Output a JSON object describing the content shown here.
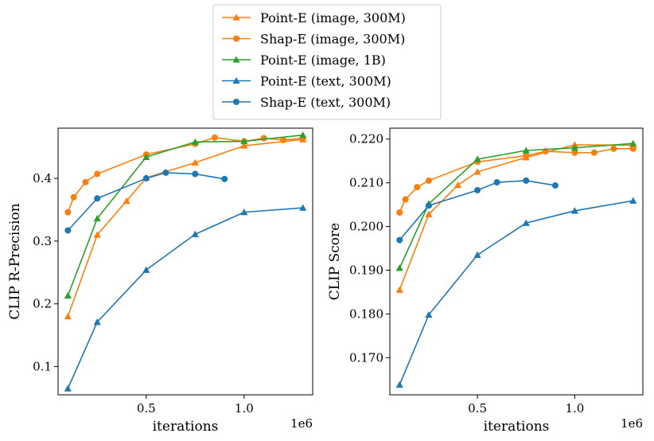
{
  "chart_data": [
    {
      "type": "line",
      "xlabel": "iterations",
      "ylabel": "CLIP R-Precision",
      "x_offset_label": "1e6",
      "xlim": [
        0.05,
        1.35
      ],
      "ylim": [
        0.055,
        0.48
      ],
      "xticks": [
        0.5,
        1.0
      ],
      "xtick_labels": [
        "0.5",
        "1.0"
      ],
      "yticks": [
        0.1,
        0.2,
        0.3,
        0.4
      ],
      "ytick_labels": [
        "0.1",
        "0.2",
        "0.3",
        "0.4"
      ],
      "series": [
        {
          "name": "Point-E (image, 300M)",
          "color": "#ff7f0e",
          "marker": "triangle",
          "x": [
            0.1,
            0.25,
            0.4,
            0.5,
            0.75,
            1.0,
            1.3
          ],
          "y": [
            0.18,
            0.31,
            0.364,
            0.401,
            0.425,
            0.452,
            0.462
          ]
        },
        {
          "name": "Shap-E (image, 300M)",
          "color": "#ff7f0e",
          "marker": "circle",
          "x": [
            0.1,
            0.13,
            0.19,
            0.25,
            0.5,
            0.75,
            0.85,
            1.0,
            1.1,
            1.2,
            1.3
          ],
          "y": [
            0.346,
            0.37,
            0.394,
            0.407,
            0.438,
            0.455,
            0.465,
            0.459,
            0.464,
            0.461,
            0.464
          ]
        },
        {
          "name": "Point-E (image, 1B)",
          "color": "#2ca02c",
          "marker": "triangle",
          "x": [
            0.1,
            0.25,
            0.5,
            0.75,
            1.0,
            1.3
          ],
          "y": [
            0.213,
            0.336,
            0.434,
            0.458,
            0.459,
            0.469
          ]
        },
        {
          "name": "Point-E (text, 300M)",
          "color": "#1f77b4",
          "marker": "triangle",
          "x": [
            0.1,
            0.25,
            0.5,
            0.75,
            1.0,
            1.3
          ],
          "y": [
            0.065,
            0.171,
            0.254,
            0.311,
            0.346,
            0.353
          ]
        },
        {
          "name": "Shap-E (text, 300M)",
          "color": "#1f77b4",
          "marker": "circle",
          "x": [
            0.1,
            0.25,
            0.5,
            0.6,
            0.75,
            0.9
          ],
          "y": [
            0.317,
            0.368,
            0.4,
            0.409,
            0.407,
            0.399
          ]
        }
      ]
    },
    {
      "type": "line",
      "xlabel": "iterations",
      "ylabel": "CLIP Score",
      "x_offset_label": "1e6",
      "xlim": [
        0.05,
        1.35
      ],
      "ylim": [
        0.1615,
        0.2225
      ],
      "xticks": [
        0.5,
        1.0
      ],
      "xtick_labels": [
        "0.5",
        "1.0"
      ],
      "yticks": [
        0.17,
        0.18,
        0.19,
        0.2,
        0.21,
        0.22
      ],
      "ytick_labels": [
        "0.170",
        "0.180",
        "0.190",
        "0.200",
        "0.210",
        "0.220"
      ],
      "series": [
        {
          "name": "Point-E (image, 300M)",
          "color": "#ff7f0e",
          "marker": "triangle",
          "x": [
            0.1,
            0.25,
            0.4,
            0.5,
            0.75,
            1.0,
            1.3
          ],
          "y": [
            0.1855,
            0.2028,
            0.2095,
            0.2125,
            0.2158,
            0.2187,
            0.2186
          ]
        },
        {
          "name": "Shap-E (image, 300M)",
          "color": "#ff7f0e",
          "marker": "circle",
          "x": [
            0.1,
            0.13,
            0.19,
            0.25,
            0.5,
            0.75,
            0.85,
            1.0,
            1.1,
            1.2,
            1.3
          ],
          "y": [
            0.2032,
            0.2062,
            0.209,
            0.2105,
            0.2148,
            0.2162,
            0.2172,
            0.2169,
            0.2169,
            0.2178,
            0.2178
          ]
        },
        {
          "name": "Point-E (image, 1B)",
          "color": "#2ca02c",
          "marker": "triangle",
          "x": [
            0.1,
            0.25,
            0.5,
            0.75,
            1.0,
            1.3
          ],
          "y": [
            0.1905,
            0.2052,
            0.2154,
            0.2174,
            0.218,
            0.219
          ]
        },
        {
          "name": "Point-E (text, 300M)",
          "color": "#1f77b4",
          "marker": "triangle",
          "x": [
            0.1,
            0.25,
            0.5,
            0.75,
            1.0,
            1.3
          ],
          "y": [
            0.1638,
            0.1798,
            0.1935,
            0.2008,
            0.2036,
            0.2059
          ]
        },
        {
          "name": "Shap-E (text, 300M)",
          "color": "#1f77b4",
          "marker": "circle",
          "x": [
            0.1,
            0.25,
            0.5,
            0.6,
            0.75,
            0.9
          ],
          "y": [
            0.1969,
            0.2048,
            0.2083,
            0.2101,
            0.2105,
            0.2094
          ]
        }
      ]
    }
  ],
  "legend": {
    "placement": "top-center",
    "entries": [
      {
        "label": "Point-E (image, 300M)",
        "color": "#ff7f0e",
        "marker": "triangle"
      },
      {
        "label": "Shap-E (image, 300M)",
        "color": "#ff7f0e",
        "marker": "circle"
      },
      {
        "label": "Point-E (image, 1B)",
        "color": "#2ca02c",
        "marker": "triangle"
      },
      {
        "label": "Point-E (text, 300M)",
        "color": "#1f77b4",
        "marker": "triangle"
      },
      {
        "label": "Shap-E (text, 300M)",
        "color": "#1f77b4",
        "marker": "circle"
      }
    ]
  }
}
